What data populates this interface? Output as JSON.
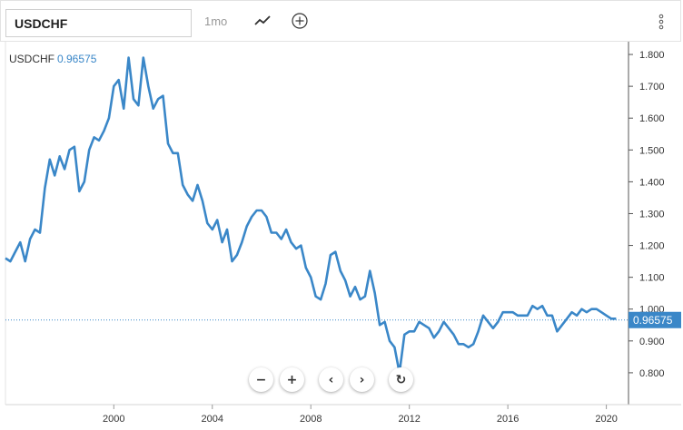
{
  "toolbar": {
    "symbol": "USDCHF",
    "period": "1mo",
    "line_icon": "line-chart-icon",
    "add_icon": "plus-circle-icon",
    "menu_icon": "vertical-dots-icon"
  },
  "series_label": {
    "name": "USDCHF",
    "value": "0.96575"
  },
  "controls": {
    "zoom_out": "−",
    "zoom_in": "+",
    "prev": "‹",
    "next": "›",
    "reset": "↻"
  },
  "colors": {
    "line": "#3a87c8",
    "last_badge": "#3a87c8",
    "axis": "#555555",
    "grid": "#e6e6e6"
  },
  "chart_data": {
    "type": "line",
    "title": "",
    "xlabel": "",
    "ylabel": "",
    "x_ticks": [
      "2000",
      "2004",
      "2008",
      "2012",
      "2016",
      "2020"
    ],
    "x_tick_values": [
      2000,
      2004,
      2008,
      2012,
      2016,
      2020
    ],
    "y_ticks": [
      "0.800",
      "0.900",
      "1.000",
      "1.100",
      "1.200",
      "1.300",
      "1.400",
      "1.500",
      "1.600",
      "1.700",
      "1.800"
    ],
    "y_tick_values": [
      0.8,
      0.9,
      1.0,
      1.1,
      1.2,
      1.3,
      1.4,
      1.5,
      1.6,
      1.7,
      1.8
    ],
    "xlim": [
      1995.6,
      2020.9
    ],
    "ylim": [
      0.7,
      1.84
    ],
    "last_value": 0.96575,
    "last_value_label": "0.96575",
    "series": [
      {
        "name": "USDCHF",
        "x": [
          1995.6,
          1995.8,
          1996.0,
          1996.2,
          1996.4,
          1996.6,
          1996.8,
          1997.0,
          1997.2,
          1997.4,
          1997.6,
          1997.8,
          1998.0,
          1998.2,
          1998.4,
          1998.6,
          1998.8,
          1999.0,
          1999.2,
          1999.4,
          1999.6,
          1999.8,
          2000.0,
          2000.2,
          2000.4,
          2000.6,
          2000.8,
          2001.0,
          2001.2,
          2001.4,
          2001.6,
          2001.8,
          2002.0,
          2002.2,
          2002.4,
          2002.6,
          2002.8,
          2003.0,
          2003.2,
          2003.4,
          2003.6,
          2003.8,
          2004.0,
          2004.2,
          2004.4,
          2004.6,
          2004.8,
          2005.0,
          2005.2,
          2005.4,
          2005.6,
          2005.8,
          2006.0,
          2006.2,
          2006.4,
          2006.6,
          2006.8,
          2007.0,
          2007.2,
          2007.4,
          2007.6,
          2007.8,
          2008.0,
          2008.2,
          2008.4,
          2008.6,
          2008.8,
          2009.0,
          2009.2,
          2009.4,
          2009.6,
          2009.8,
          2010.0,
          2010.2,
          2010.4,
          2010.6,
          2010.8,
          2011.0,
          2011.2,
          2011.4,
          2011.6,
          2011.8,
          2012.0,
          2012.2,
          2012.4,
          2012.6,
          2012.8,
          2013.0,
          2013.2,
          2013.4,
          2013.6,
          2013.8,
          2014.0,
          2014.2,
          2014.4,
          2014.6,
          2014.8,
          2015.0,
          2015.2,
          2015.4,
          2015.6,
          2015.8,
          2016.0,
          2016.2,
          2016.4,
          2016.6,
          2016.8,
          2017.0,
          2017.2,
          2017.4,
          2017.6,
          2017.8,
          2018.0,
          2018.2,
          2018.4,
          2018.6,
          2018.8,
          2019.0,
          2019.2,
          2019.4,
          2019.6,
          2019.8,
          2020.0,
          2020.2,
          2020.4
        ],
        "values": [
          1.16,
          1.15,
          1.18,
          1.21,
          1.15,
          1.22,
          1.25,
          1.24,
          1.38,
          1.47,
          1.42,
          1.48,
          1.44,
          1.5,
          1.51,
          1.37,
          1.4,
          1.5,
          1.54,
          1.53,
          1.56,
          1.6,
          1.7,
          1.72,
          1.63,
          1.79,
          1.66,
          1.64,
          1.79,
          1.7,
          1.63,
          1.66,
          1.67,
          1.52,
          1.49,
          1.49,
          1.39,
          1.36,
          1.34,
          1.39,
          1.34,
          1.27,
          1.25,
          1.28,
          1.21,
          1.25,
          1.15,
          1.17,
          1.21,
          1.26,
          1.29,
          1.31,
          1.31,
          1.29,
          1.24,
          1.24,
          1.22,
          1.25,
          1.21,
          1.19,
          1.2,
          1.13,
          1.1,
          1.04,
          1.03,
          1.08,
          1.17,
          1.18,
          1.12,
          1.09,
          1.04,
          1.07,
          1.03,
          1.04,
          1.12,
          1.05,
          0.95,
          0.96,
          0.9,
          0.88,
          0.8,
          0.92,
          0.93,
          0.93,
          0.96,
          0.95,
          0.94,
          0.91,
          0.93,
          0.96,
          0.94,
          0.92,
          0.89,
          0.89,
          0.88,
          0.89,
          0.93,
          0.98,
          0.96,
          0.94,
          0.96,
          0.99,
          0.99,
          0.99,
          0.98,
          0.98,
          0.98,
          1.01,
          1.0,
          1.01,
          0.98,
          0.98,
          0.93,
          0.95,
          0.97,
          0.99,
          0.98,
          1.0,
          0.99,
          1.0,
          1.0,
          0.99,
          0.98,
          0.97,
          0.97
        ]
      }
    ]
  }
}
